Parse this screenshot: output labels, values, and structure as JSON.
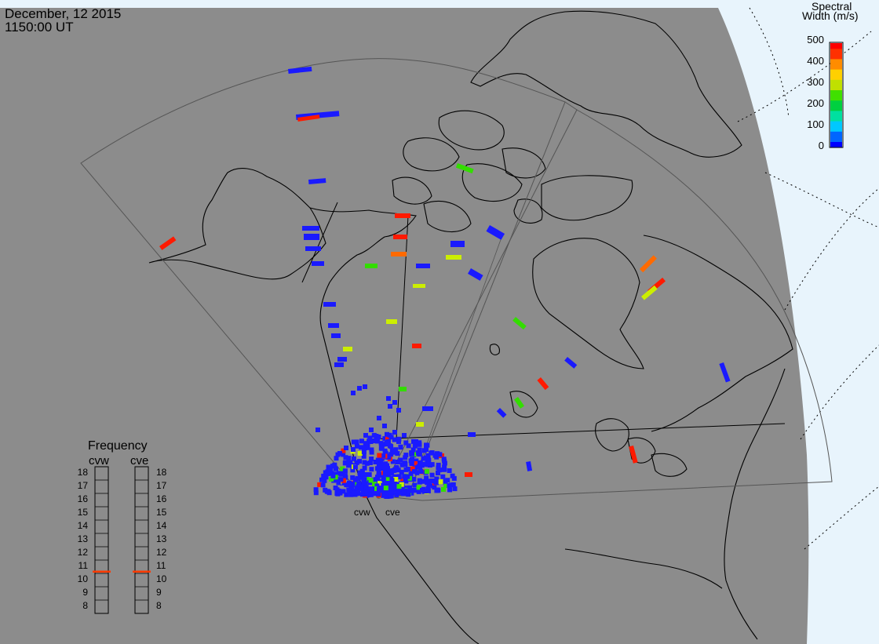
{
  "header": {
    "date": "December, 12 2015",
    "time": "1150:00 UT"
  },
  "colorbar": {
    "title_line1": "Spectral",
    "title_line2": "Width (m/s)",
    "ticks": [
      "500",
      "400",
      "300",
      "200",
      "100",
      "0"
    ],
    "scale": [
      "#0000ff",
      "#0066ff",
      "#00c8ff",
      "#00e0a0",
      "#00d040",
      "#40e000",
      "#c0e000",
      "#ffd000",
      "#ff8c00",
      "#ff3000",
      "#ff0000"
    ]
  },
  "radars": [
    {
      "code": "cvw",
      "selected_frequency_mhz": 10.6
    },
    {
      "code": "cve",
      "selected_frequency_mhz": 10.6
    }
  ],
  "frequency_panel": {
    "title": "Frequency",
    "cvw_label": "cvw",
    "cve_label": "cve",
    "scale_mhz": [
      "18",
      "17",
      "16",
      "15",
      "14",
      "13",
      "12",
      "11",
      "10",
      "9",
      "8"
    ]
  },
  "colors": {
    "ocean": "#8c8c8c",
    "outside_earth": "#e8f4fc",
    "coastline": "#000000",
    "indicator": "#ff3a00"
  }
}
